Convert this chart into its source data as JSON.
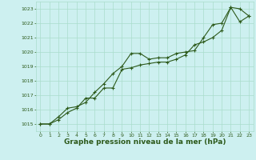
{
  "line1": {
    "x": [
      0,
      1,
      2,
      3,
      4,
      5,
      6,
      7,
      8,
      9,
      10,
      11,
      12,
      13,
      14,
      15,
      16,
      17,
      18,
      19,
      20,
      21,
      22,
      23
    ],
    "y": [
      1015.0,
      1015.0,
      1015.5,
      1016.1,
      1016.2,
      1016.5,
      1017.2,
      1017.8,
      1018.5,
      1019.0,
      1019.9,
      1019.9,
      1019.5,
      1019.6,
      1019.6,
      1019.9,
      1020.0,
      1020.1,
      1021.0,
      1021.9,
      1022.0,
      1023.1,
      1023.0,
      1022.5
    ]
  },
  "line2": {
    "x": [
      0,
      1,
      2,
      3,
      4,
      5,
      6,
      7,
      8,
      9,
      10,
      11,
      12,
      13,
      14,
      15,
      16,
      17,
      18,
      19,
      20,
      21,
      22,
      23
    ],
    "y": [
      1015.0,
      1015.0,
      1015.3,
      1015.8,
      1016.1,
      1016.8,
      1016.8,
      1017.5,
      1017.5,
      1018.8,
      1018.9,
      1019.1,
      1019.2,
      1019.3,
      1019.3,
      1019.5,
      1019.8,
      1020.5,
      1020.7,
      1021.0,
      1021.5,
      1023.1,
      1022.1,
      1022.5
    ]
  },
  "bg_color": "#cdf0f0",
  "grid_color": "#aaddcc",
  "line_color": "#2d5a1b",
  "marker": "+",
  "xlabel": "Graphe pression niveau de la mer (hPa)",
  "ylim": [
    1014.5,
    1023.5
  ],
  "xlim": [
    -0.5,
    23.5
  ],
  "yticks": [
    1015,
    1016,
    1017,
    1018,
    1019,
    1020,
    1021,
    1022,
    1023
  ],
  "xticks": [
    0,
    1,
    2,
    3,
    4,
    5,
    6,
    7,
    8,
    9,
    10,
    11,
    12,
    13,
    14,
    15,
    16,
    17,
    18,
    19,
    20,
    21,
    22,
    23
  ],
  "tick_fontsize": 4.5,
  "xlabel_fontsize": 6.5,
  "linewidth": 0.8,
  "markersize": 3,
  "markeredgewidth": 0.8
}
